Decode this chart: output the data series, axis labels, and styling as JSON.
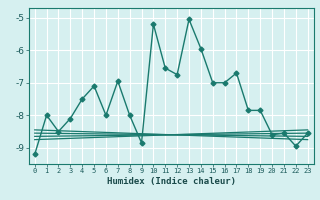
{
  "main_x": [
    0,
    1,
    2,
    3,
    4,
    5,
    6,
    7,
    8,
    9,
    10,
    11,
    12,
    13,
    14,
    15,
    16,
    17,
    18,
    19,
    20,
    21,
    22,
    23
  ],
  "main_y": [
    -9.2,
    -8.0,
    -8.5,
    -8.1,
    -7.5,
    -7.1,
    -8.0,
    -6.95,
    -8.0,
    -8.85,
    -5.2,
    -6.55,
    -6.75,
    -5.05,
    -5.95,
    -7.0,
    -7.0,
    -6.7,
    -7.85,
    -7.85,
    -8.6,
    -8.55,
    -8.95,
    -8.55
  ],
  "trend1_x": [
    0,
    23
  ],
  "trend1_y": [
    -8.45,
    -8.75
  ],
  "trend2_x": [
    0,
    23
  ],
  "trend2_y": [
    -8.55,
    -8.65
  ],
  "trend3_x": [
    0,
    23
  ],
  "trend3_y": [
    -8.65,
    -8.55
  ],
  "trend4_x": [
    0,
    23
  ],
  "trend4_y": [
    -8.75,
    -8.45
  ],
  "color_main": "#1a7a6e",
  "bg_color": "#d6f0f0",
  "grid_color": "#b0d8d8",
  "xlabel": "Humidex (Indice chaleur)",
  "ylim": [
    -9.5,
    -4.7
  ],
  "xlim": [
    -0.5,
    23.5
  ],
  "yticks": [
    -9,
    -8,
    -7,
    -6,
    -5
  ],
  "xticks": [
    0,
    1,
    2,
    3,
    4,
    5,
    6,
    7,
    8,
    9,
    10,
    11,
    12,
    13,
    14,
    15,
    16,
    17,
    18,
    19,
    20,
    21,
    22,
    23
  ]
}
